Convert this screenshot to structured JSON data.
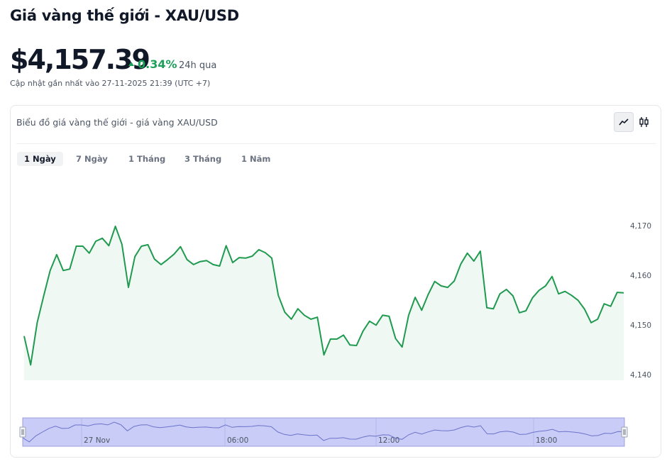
{
  "header": {
    "title": "Giá vàng thế giới - XAU/USD",
    "price": "$4,157.39",
    "change": "0.34%",
    "period": "24h qua",
    "updated": "Cập nhật gần nhất vào 27-11-2025 21:39 (UTC +7)"
  },
  "card_title": "Biểu đồ giá vàng thế giới - giá vàng XAU/USD",
  "tabs": [
    "1 Ngày",
    "7 Ngày",
    "1 Tháng",
    "3 Tháng",
    "1 Năm"
  ],
  "chart_data": {
    "type": "line",
    "color": "#1f9a4f",
    "values": [
      4147.9,
      4142.1,
      4150.6,
      4156.0,
      4161.1,
      4164.3,
      4161.1,
      4161.4,
      4166.0,
      4166.0,
      4164.6,
      4167.0,
      4167.6,
      4166.1,
      4170.0,
      4166.4,
      4157.7,
      4163.9,
      4166.0,
      4166.3,
      4163.4,
      4162.3,
      4163.3,
      4164.4,
      4165.9,
      4163.3,
      4162.3,
      4162.9,
      4163.1,
      4162.3,
      4162.0,
      4166.1,
      4162.7,
      4163.7,
      4163.6,
      4164.0,
      4165.3,
      4164.7,
      4163.6,
      4156.1,
      4152.7,
      4151.3,
      4153.4,
      4152.1,
      4151.3,
      4151.7,
      4144.1,
      4147.3,
      4147.3,
      4148.1,
      4146.1,
      4146.0,
      4148.9,
      4150.9,
      4150.1,
      4152.1,
      4151.9,
      4147.4,
      4145.7,
      4152.1,
      4155.7,
      4153.1,
      4156.3,
      4158.9,
      4158.0,
      4157.7,
      4159.0,
      4162.4,
      4164.6,
      4163.0,
      4165.0,
      4153.6,
      4153.4,
      4156.4,
      4157.3,
      4156.0,
      4152.6,
      4153.0,
      4155.6,
      4157.1,
      4158.0,
      4159.9,
      4156.4,
      4156.9,
      4156.1,
      4155.1,
      4153.3,
      4150.6,
      4151.3,
      4154.4,
      4153.9,
      4156.7,
      4156.6
    ],
    "ylim": [
      4139,
      4173
    ],
    "yticks": [
      {
        "value": 4140,
        "label": "4,140"
      },
      {
        "value": 4150,
        "label": "4,150"
      },
      {
        "value": 4160,
        "label": "4,160"
      },
      {
        "value": 4170,
        "label": "4,170"
      }
    ],
    "navigator_labels": [
      "27 Nov",
      "06:00",
      "12:00",
      "18:00"
    ]
  }
}
